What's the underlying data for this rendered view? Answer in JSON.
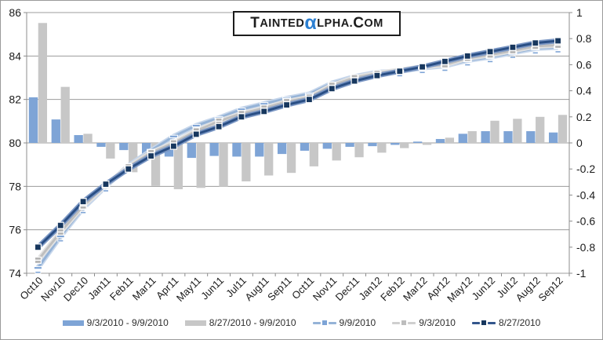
{
  "logo": {
    "cap1": "T",
    "part1": "AINTED",
    "alpha": "α",
    "part2": "LPHA.",
    "cap2": "C",
    "part3": "OM"
  },
  "chart_data": {
    "type": "combo-bar-line",
    "categories": [
      "Oct10",
      "Nov10",
      "Dec10",
      "Jan11",
      "Feb11",
      "Mar11",
      "Apr11",
      "May11",
      "Jun11",
      "Jul11",
      "Aug11",
      "Sep11",
      "Oct11",
      "Nov11",
      "Dec11",
      "Jan12",
      "Feb12",
      "Mar12",
      "Apr12",
      "May12",
      "Jun12",
      "Jul12",
      "Aug12",
      "Sep12"
    ],
    "left_axis": {
      "min": 74,
      "max": 86,
      "ticks": [
        "86",
        "84",
        "82",
        "80",
        "78",
        "76",
        "74"
      ]
    },
    "right_axis": {
      "min": -1,
      "max": 1,
      "ticks": [
        "1",
        "0.8",
        "0.6",
        "0.4",
        "0.2",
        "0",
        "-0.2",
        "-0.4",
        "-0.6",
        "-0.8",
        "-1"
      ]
    },
    "grid": true,
    "legend_position": "bottom",
    "bar_series": [
      {
        "name": "9/3/2010 - 9/9/2010",
        "axis": "right",
        "color": "#7ea4d6",
        "values": [
          0.35,
          0.18,
          0.06,
          -0.03,
          -0.055,
          -0.085,
          -0.105,
          -0.115,
          -0.1,
          -0.105,
          -0.105,
          -0.085,
          -0.06,
          -0.045,
          -0.03,
          -0.025,
          -0.015,
          0.01,
          0.03,
          0.07,
          0.09,
          0.09,
          0.09,
          0.08
        ]
      },
      {
        "name": "8/27/2010 - 9/9/2010",
        "axis": "right",
        "color": "#c7c7c7",
        "values": [
          0.92,
          0.43,
          0.07,
          -0.12,
          -0.225,
          -0.33,
          -0.355,
          -0.345,
          -0.335,
          -0.295,
          -0.25,
          -0.23,
          -0.18,
          -0.135,
          -0.11,
          -0.075,
          -0.04,
          -0.015,
          0.04,
          0.09,
          0.17,
          0.185,
          0.2,
          0.215
        ]
      }
    ],
    "line_series": [
      {
        "name": "9/9/2010",
        "axis": "left",
        "color": "#95b3d7",
        "halo": "#c6d6eb",
        "marker": "dash",
        "marker_color": "#7ea4d6",
        "values": [
          74.25,
          75.7,
          77.0,
          78.0,
          78.95,
          79.65,
          80.3,
          80.8,
          81.15,
          81.55,
          81.8,
          82.05,
          82.25,
          82.75,
          83.05,
          83.25,
          83.3,
          83.45,
          83.55,
          83.8,
          83.95,
          84.15,
          84.35,
          84.4
        ]
      },
      {
        "name": "9/3/2010",
        "axis": "left",
        "color": "#bfbfbf",
        "halo": "#e2e2e2",
        "marker": "square-striped",
        "marker_color": "#b3b3b3",
        "values": [
          74.6,
          75.9,
          77.1,
          78.05,
          78.9,
          79.55,
          80.0,
          80.55,
          81.0,
          81.35,
          81.6,
          81.9,
          82.1,
          82.65,
          83.0,
          83.2,
          83.35,
          83.5,
          83.6,
          83.9,
          84.05,
          84.25,
          84.45,
          84.5
        ]
      },
      {
        "name": "8/27/2010",
        "axis": "left",
        "color": "#2a4f85",
        "halo": "#7b97c4",
        "marker": "square",
        "marker_color": "#17375e",
        "values": [
          75.2,
          76.2,
          77.3,
          78.1,
          78.8,
          79.4,
          79.85,
          80.4,
          80.75,
          81.2,
          81.45,
          81.75,
          82.0,
          82.5,
          82.85,
          83.1,
          83.3,
          83.5,
          83.75,
          84.0,
          84.2,
          84.4,
          84.6,
          84.7
        ]
      }
    ]
  },
  "style": {
    "grid_color": "#9c9c9c",
    "axis_color": "#8c8c8c",
    "label_color": "#1a1a1a",
    "logo_alpha_color": "#2c80d2"
  }
}
